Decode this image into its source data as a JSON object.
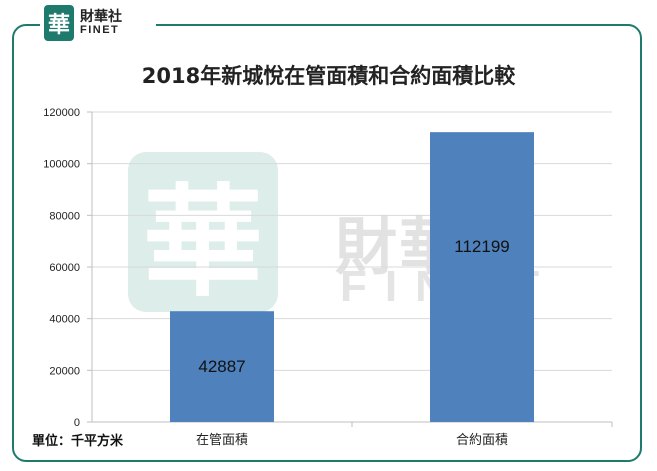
{
  "logo": {
    "mark": "華",
    "name_cn": "財華社",
    "name_en": "FINET"
  },
  "watermark": {
    "mark": "華",
    "name_cn": "財華社",
    "name_en": "FINET"
  },
  "unit_label": "單位：千平方米",
  "chart_data": {
    "type": "bar",
    "title": "2018年新城悅在管面積和合約面積比較",
    "categories": [
      "在管面積",
      "合約面積"
    ],
    "values": [
      42887,
      112199
    ],
    "data_labels": [
      "42887",
      "112199"
    ],
    "ylim": [
      0,
      120000
    ],
    "yticks": [
      "0",
      "20000",
      "40000",
      "60000",
      "80000",
      "100000",
      "120000"
    ],
    "ytick_values": [
      0,
      20000,
      40000,
      60000,
      80000,
      100000,
      120000
    ],
    "grid": true,
    "colors": {
      "bar": "#4f81bd",
      "frame": "#1f7a6e",
      "axis": "#bfbfbf",
      "grid": "#d9d9d9"
    }
  }
}
